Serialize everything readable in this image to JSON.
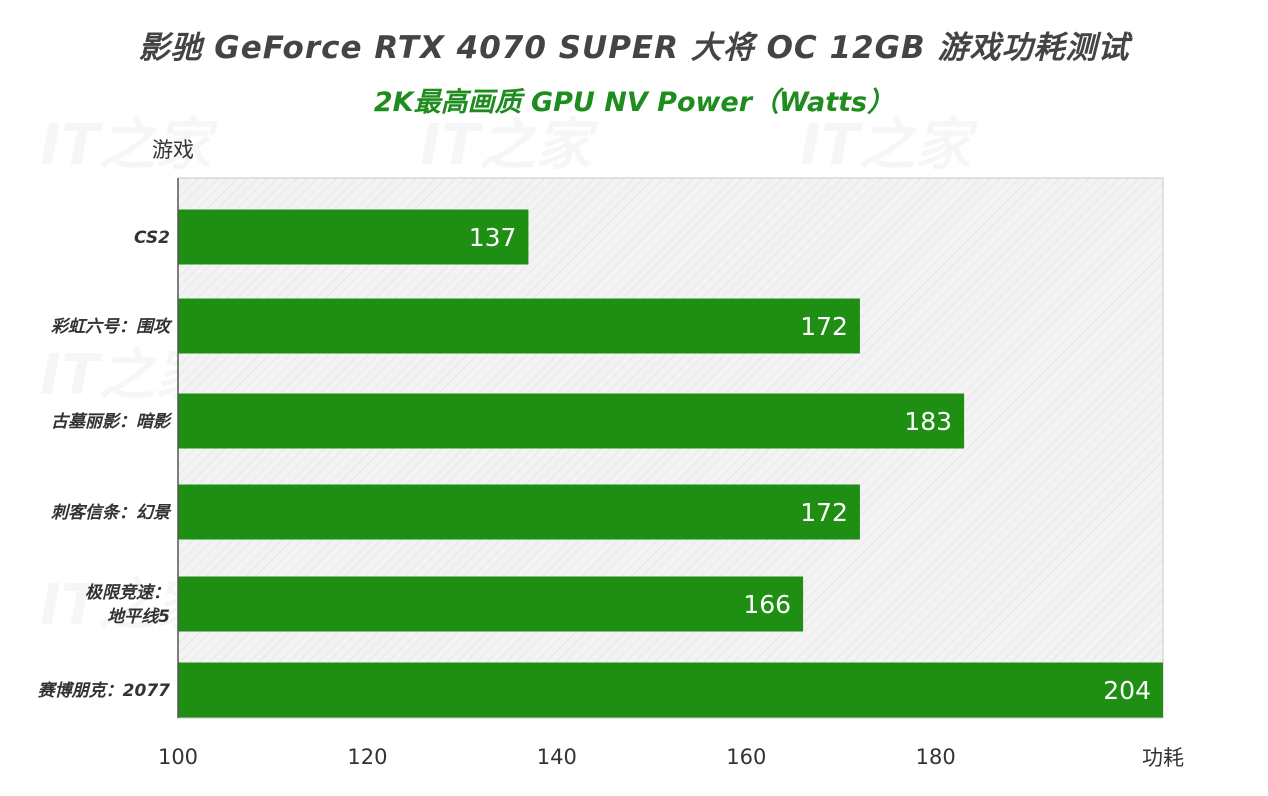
{
  "title": "影驰 GeForce RTX 4070 SUPER 大将 OC 12GB 游戏功耗测试",
  "subtitle": "2K最高画质 GPU NV Power（Watts）",
  "colors": {
    "bar": "#1f8f14",
    "title": "#444444",
    "subtitle": "#1e8c1e",
    "plot_bg": "#f2f2f2"
  },
  "chart_data": {
    "type": "bar",
    "orientation": "horizontal",
    "ylabel": "游戏",
    "xlabel": "功耗",
    "categories": [
      "CS2",
      "彩虹六号：围攻",
      "古墓丽影：暗影",
      "刺客信条：幻景",
      "极限竞速：地平线5",
      "赛博朋克：2077"
    ],
    "category_lines": [
      [
        "CS2"
      ],
      [
        "彩虹六号：围攻"
      ],
      [
        "古墓丽影：暗影"
      ],
      [
        "刺客信条：幻景"
      ],
      [
        "极限竞速：",
        "地平线5"
      ],
      [
        "赛博朋克：2077"
      ]
    ],
    "values": [
      137,
      172,
      183,
      172,
      166,
      204
    ],
    "xlim": [
      100,
      204
    ],
    "xticks": [
      100,
      120,
      140,
      160,
      180
    ],
    "data_labels": true,
    "grid": false
  }
}
